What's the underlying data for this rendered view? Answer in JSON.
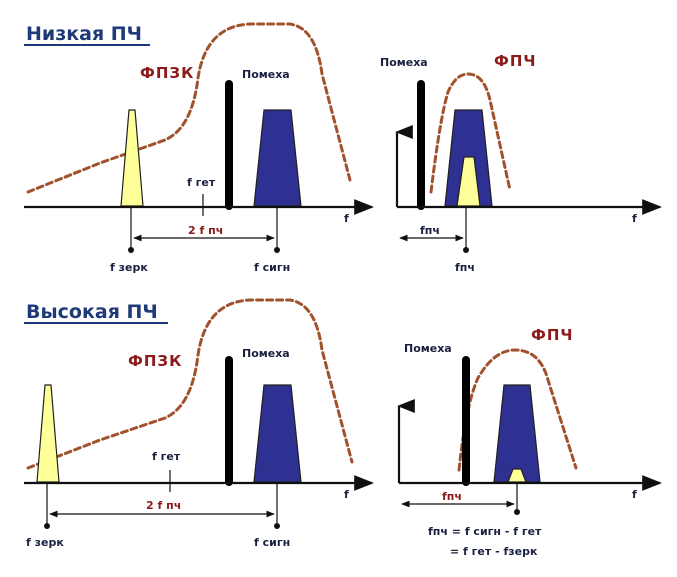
{
  "low_if": {
    "title": "Низкая ПЧ",
    "left": {
      "filter_label": "ФПЗК",
      "interference_label": "Помеха",
      "f_het_label": "f гет",
      "f_mirror_label": "f зерк",
      "f_signal_label": "f сигн",
      "two_fif_label": "2 f пч",
      "axis_label": "f"
    },
    "right": {
      "interference_label": "Помеха",
      "filter_label": "ФПЧ",
      "f_if_dim_label": "fпч",
      "f_if_label": "fпч",
      "axis_label": "f"
    }
  },
  "high_if": {
    "title": "Высокая ПЧ",
    "left": {
      "filter_label": "ФПЗК",
      "interference_label": "Помеха",
      "f_het_label": "f гет",
      "f_mirror_label": "f зерк",
      "f_signal_label": "f сигн",
      "two_fif_label": "2 f пч",
      "axis_label": "f"
    },
    "right": {
      "interference_label": "Помеха",
      "filter_label": "ФПЧ",
      "f_if_dim_label": "fпч",
      "axis_label": "f",
      "formula_line1": "fпч = f сигн - f гет",
      "formula_line2": "= f гет - fзерк"
    }
  },
  "colors": {
    "title": "#1f3a78",
    "filter_curve": "#a0522d",
    "filter_label": "#8b1a1a",
    "mirror_spectrum": "#ffff99",
    "signal_spectrum": "#2e3192",
    "interference_bar": "#000000"
  }
}
